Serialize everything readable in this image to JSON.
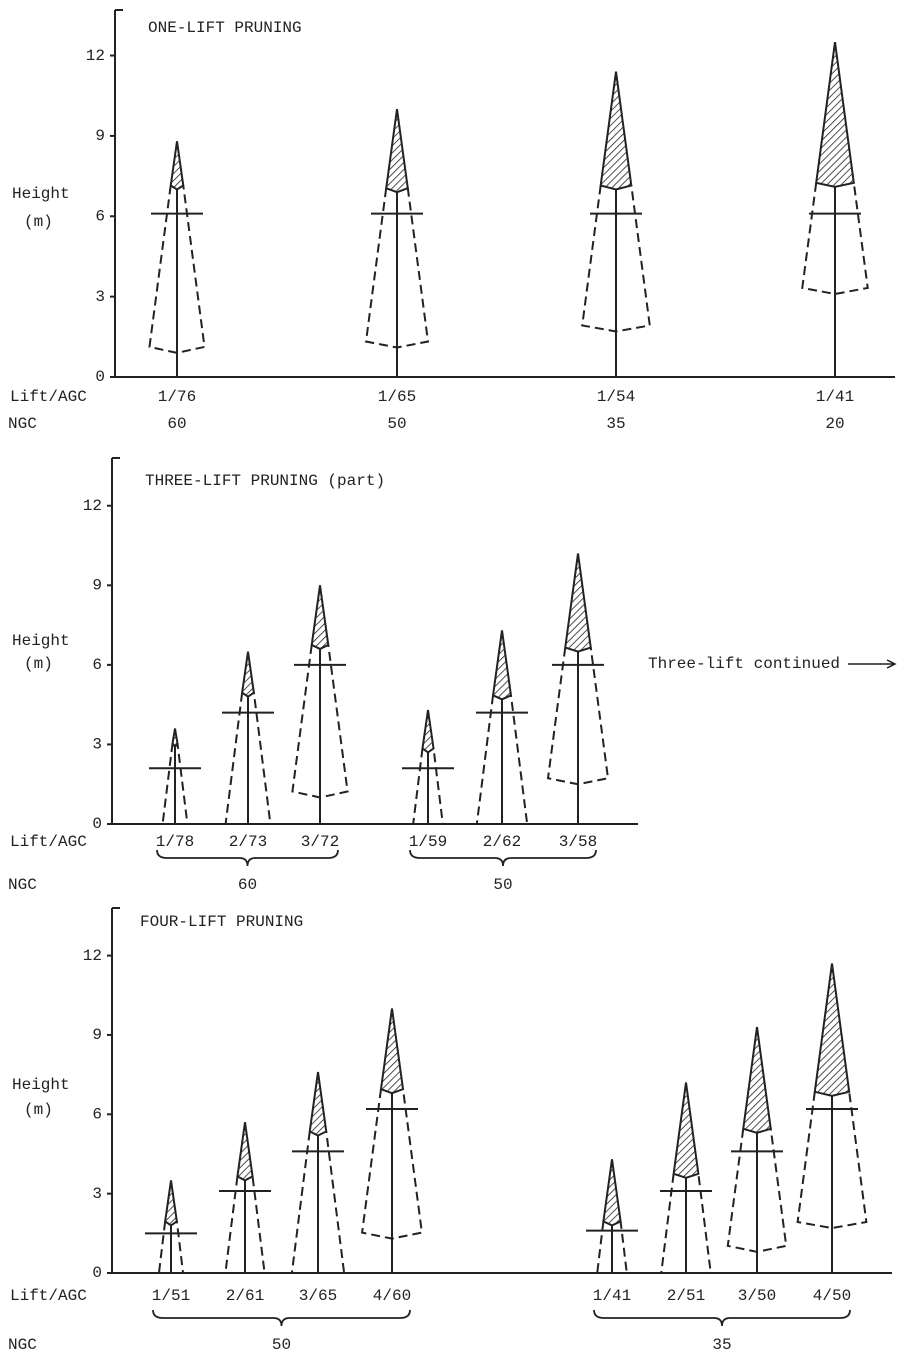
{
  "chart_data": [
    {
      "type": "pruning",
      "title": "ONE-LIFT PRUNING",
      "ylabel": "Height",
      "ylabel_unit": "(m)",
      "row_labels": [
        "Lift/AGC",
        "NGC"
      ],
      "ylim": [
        0,
        13.7
      ],
      "yticks": [
        0,
        3,
        6,
        9,
        12
      ],
      "groups": [
        {
          "ngc": 60,
          "trees": [
            {
              "label": "1/76",
              "top": 8.8,
              "crown_base": 7.0,
              "prune": 6.1,
              "crown_bottom": 0.9
            }
          ]
        },
        {
          "ngc": 50,
          "trees": [
            {
              "label": "1/65",
              "top": 10.0,
              "crown_base": 6.9,
              "prune": 6.1,
              "crown_bottom": 1.1
            }
          ]
        },
        {
          "ngc": 35,
          "trees": [
            {
              "label": "1/54",
              "top": 11.4,
              "crown_base": 7.0,
              "prune": 6.1,
              "crown_bottom": 1.7
            }
          ]
        },
        {
          "ngc": 20,
          "trees": [
            {
              "label": "1/41",
              "top": 12.5,
              "crown_base": 7.1,
              "prune": 6.1,
              "crown_bottom": 3.1
            }
          ]
        }
      ]
    },
    {
      "type": "pruning",
      "title": "THREE-LIFT PRUNING (part)",
      "ylabel": "Height",
      "ylabel_unit": "(m)",
      "row_labels": [
        "Lift/AGC",
        "NGC"
      ],
      "ylim": [
        0,
        13.8
      ],
      "yticks": [
        0,
        3,
        6,
        9,
        12
      ],
      "annotation": "Three-lift continued",
      "groups": [
        {
          "ngc": 60,
          "trees": [
            {
              "label": "1/78",
              "top": 3.6,
              "crown_base": 2.9,
              "prune": 2.1,
              "crown_bottom": 0
            },
            {
              "label": "2/73",
              "top": 6.5,
              "crown_base": 4.8,
              "prune": 4.2,
              "crown_bottom": 0
            },
            {
              "label": "3/72",
              "top": 9.0,
              "crown_base": 6.6,
              "prune": 6.0,
              "crown_bottom": 1.0
            }
          ]
        },
        {
          "ngc": 50,
          "trees": [
            {
              "label": "1/59",
              "top": 4.3,
              "crown_base": 2.7,
              "prune": 2.1,
              "crown_bottom": 0
            },
            {
              "label": "2/62",
              "top": 7.3,
              "crown_base": 4.7,
              "prune": 4.2,
              "crown_bottom": 0
            },
            {
              "label": "3/58",
              "top": 10.2,
              "crown_base": 6.5,
              "prune": 6.0,
              "crown_bottom": 1.5
            }
          ]
        }
      ]
    },
    {
      "type": "pruning",
      "title": "FOUR-LIFT PRUNING",
      "ylabel": "Height",
      "ylabel_unit": "(m)",
      "row_labels": [
        "Lift/AGC",
        "NGC"
      ],
      "ylim": [
        0,
        13.8
      ],
      "yticks": [
        0,
        3,
        6,
        9,
        12
      ],
      "groups": [
        {
          "ngc": 50,
          "trees": [
            {
              "label": "1/51",
              "top": 3.5,
              "crown_base": 1.8,
              "prune": 1.5,
              "crown_bottom": 0
            },
            {
              "label": "2/61",
              "top": 5.7,
              "crown_base": 3.5,
              "prune": 3.1,
              "crown_bottom": 0
            },
            {
              "label": "3/65",
              "top": 7.6,
              "crown_base": 5.2,
              "prune": 4.6,
              "crown_bottom": 0
            },
            {
              "label": "4/60",
              "top": 10.0,
              "crown_base": 6.8,
              "prune": 6.2,
              "crown_bottom": 1.3
            }
          ]
        },
        {
          "ngc": 35,
          "trees": [
            {
              "label": "1/41",
              "top": 4.3,
              "crown_base": 1.8,
              "prune": 1.6,
              "crown_bottom": 0
            },
            {
              "label": "2/51",
              "top": 7.2,
              "crown_base": 3.6,
              "prune": 3.1,
              "crown_bottom": 0
            },
            {
              "label": "3/50",
              "top": 9.3,
              "crown_base": 5.3,
              "prune": 4.6,
              "crown_bottom": 0.8
            },
            {
              "label": "4/50",
              "top": 11.7,
              "crown_base": 6.7,
              "prune": 6.2,
              "crown_bottom": 1.7
            }
          ]
        }
      ]
    }
  ]
}
